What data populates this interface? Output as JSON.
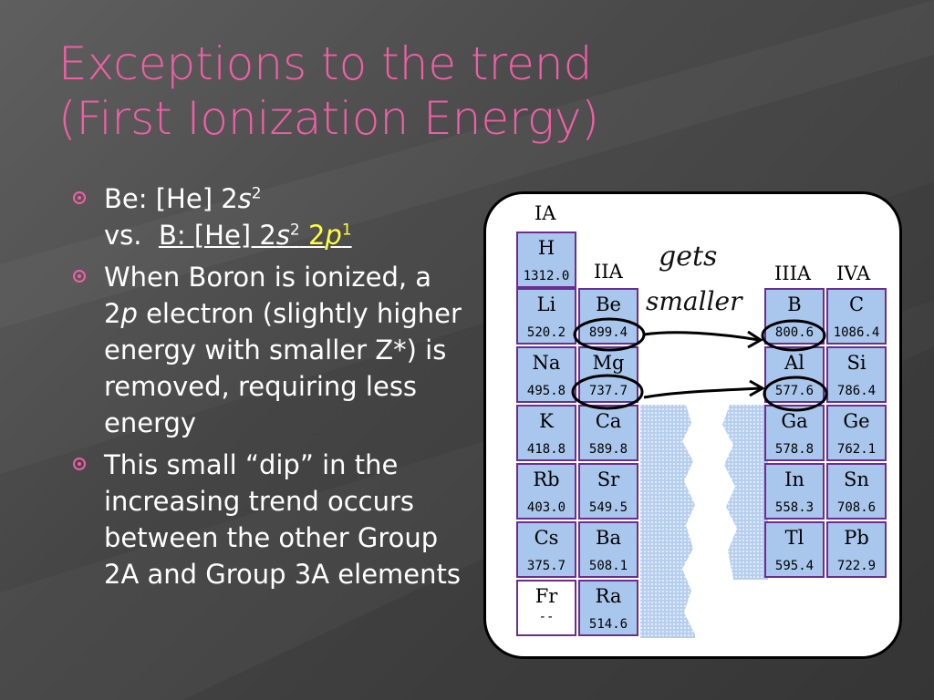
{
  "slide": {
    "title_line1": "Exceptions to the trend",
    "title_line2": "(First Ionization Energy)",
    "bullet1": {
      "be": "Be: [He] 2",
      "s": "s",
      "sup2": "2",
      "vs": "vs.",
      "b_config": "B: [He] 2",
      "b_s": "s",
      "b_sup2": "2",
      "p_num": "2",
      "p": "p",
      "p_sup": "1"
    },
    "bullet2": {
      "a": "When Boron is ionized, a 2",
      "p": "p",
      "b": " electron (slightly higher energy with smaller Z*) is removed, requiring less energy"
    },
    "bullet3": "This small “dip” in the increasing trend occurs between the other Group 2A and Group 3A elements"
  },
  "table": {
    "headers": {
      "ia": "IA",
      "iia": "IIA",
      "iiia": "IIIA",
      "iva": "IVA"
    },
    "annotation_line1": "gets",
    "annotation_line2": "smaller",
    "cells": {
      "h": {
        "sym": "H",
        "ie": "1312.0"
      },
      "li": {
        "sym": "Li",
        "ie": "520.2"
      },
      "na": {
        "sym": "Na",
        "ie": "495.8"
      },
      "k": {
        "sym": "K",
        "ie": "418.8"
      },
      "rb": {
        "sym": "Rb",
        "ie": "403.0"
      },
      "cs": {
        "sym": "Cs",
        "ie": "375.7"
      },
      "fr": {
        "sym": "Fr",
        "ie": "--"
      },
      "be": {
        "sym": "Be",
        "ie": "899.4"
      },
      "mg": {
        "sym": "Mg",
        "ie": "737.7"
      },
      "ca": {
        "sym": "Ca",
        "ie": "589.8"
      },
      "sr": {
        "sym": "Sr",
        "ie": "549.5"
      },
      "ba": {
        "sym": "Ba",
        "ie": "508.1"
      },
      "ra": {
        "sym": "Ra",
        "ie": "514.6"
      },
      "b": {
        "sym": "B",
        "ie": "800.6"
      },
      "al": {
        "sym": "Al",
        "ie": "577.6"
      },
      "ga": {
        "sym": "Ga",
        "ie": "578.8"
      },
      "in": {
        "sym": "In",
        "ie": "558.3"
      },
      "tl": {
        "sym": "Tl",
        "ie": "595.4"
      },
      "c": {
        "sym": "C",
        "ie": "1086.4"
      },
      "si": {
        "sym": "Si",
        "ie": "786.4"
      },
      "ge": {
        "sym": "Ge",
        "ie": "762.1"
      },
      "sn": {
        "sym": "Sn",
        "ie": "708.6"
      },
      "pb": {
        "sym": "Pb",
        "ie": "722.9"
      }
    }
  },
  "colors": {
    "title": "#f05fa6",
    "highlight": "#ffff40",
    "cell_fill": "#a9c6ec",
    "cell_border": "#6b2d8f"
  }
}
